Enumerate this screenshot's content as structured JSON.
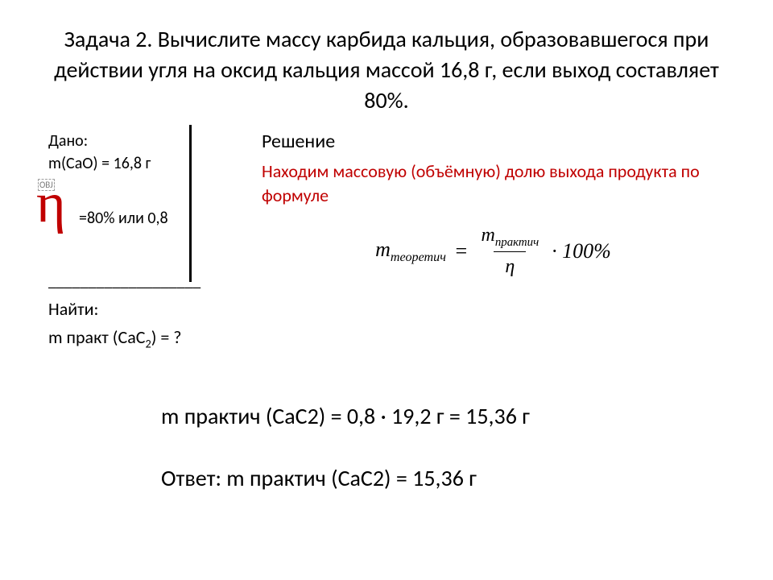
{
  "title": "Задача 2. Вычислите массу карбида кальция, образовавшегося при действии угля на оксид кальция массой 16,8 г, если выход составляет 80%.",
  "given": {
    "label": "Дано:",
    "line_mass": "m(CaO) = 16,8 г",
    "eta_symbol": "η",
    "eta_value": "=80% или 0,8",
    "separator": "___________________",
    "find_label": "Найти:",
    "find_line_prefix": "m практ (CaC",
    "find_line_sub": "2",
    "find_line_suffix": ") = ?"
  },
  "obj_placeholder": "OBJ",
  "solution": {
    "heading": "Решение",
    "red_text": "Находим массовую (объёмную) долю выхода продукта по формуле",
    "formula": {
      "lhs_m": "m",
      "lhs_sub": "теоретич",
      "eq": "=",
      "num_m": "m",
      "num_sub": "практич",
      "den": "η",
      "tail": "· 100%"
    }
  },
  "calc_line": "m практич (CaC2) = 0,8 · 19,2 г = 15,36 г",
  "answer": "Ответ: m практич (CaC2) = 15,36 г",
  "colors": {
    "accent_red": "#c00000",
    "text": "#000000",
    "background": "#ffffff"
  }
}
